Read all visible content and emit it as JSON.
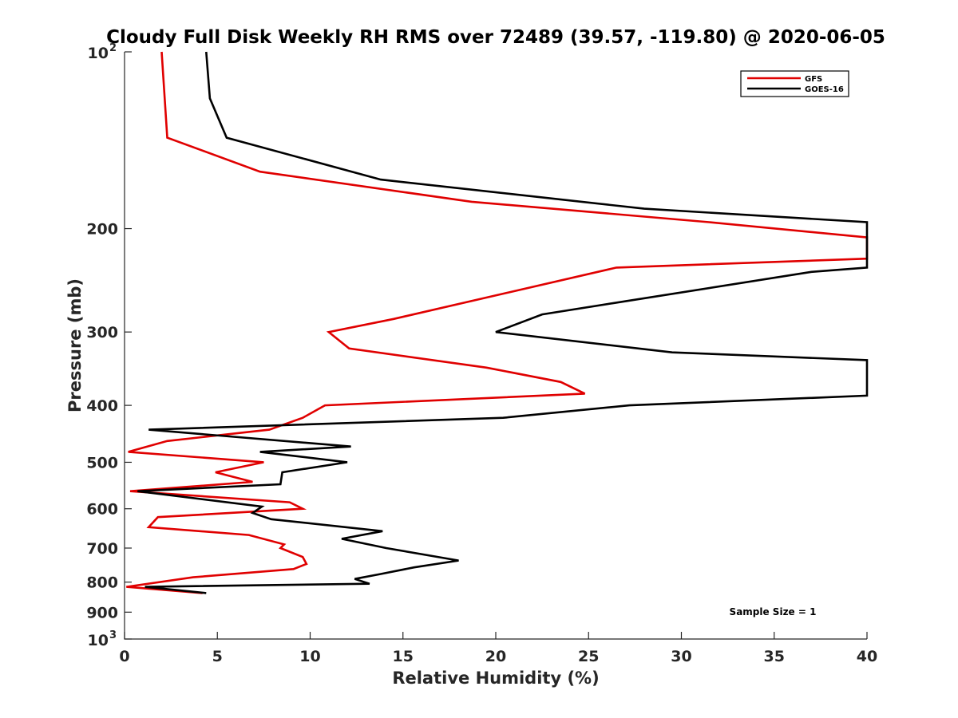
{
  "chart_data": {
    "type": "line",
    "title": "Cloudy Full Disk Weekly RH RMS over 72489 (39.57, -119.80) @ 2020-06-05",
    "xlabel": "Relative Humidity (%)",
    "ylabel": "Pressure (mb)",
    "xlim": [
      0,
      40
    ],
    "ylim": [
      100,
      1000
    ],
    "yscale": "log",
    "y_reversed": true,
    "grid": false,
    "legend_position": "top-right",
    "x_ticks": [
      "0",
      "5",
      "10",
      "15",
      "20",
      "25",
      "30",
      "35",
      "40"
    ],
    "y_ticks": [
      {
        "value": 100,
        "base": "10",
        "exp": "2"
      },
      {
        "value": 200,
        "label": "200"
      },
      {
        "value": 300,
        "label": "300"
      },
      {
        "value": 400,
        "label": "400"
      },
      {
        "value": 500,
        "label": "500"
      },
      {
        "value": 600,
        "label": "600"
      },
      {
        "value": 700,
        "label": "700"
      },
      {
        "value": 800,
        "label": "800"
      },
      {
        "value": 900,
        "label": "900"
      },
      {
        "value": 1000,
        "base": "10",
        "exp": "3"
      }
    ],
    "annotation": "Sample Size = 1",
    "series": [
      {
        "name": "GFS",
        "color": "#e00000",
        "points": [
          [
            2.0,
            100
          ],
          [
            2.3,
            140
          ],
          [
            7.3,
            160
          ],
          [
            18.7,
            180
          ],
          [
            31.5,
            195
          ],
          [
            40,
            207
          ],
          [
            40,
            225
          ],
          [
            26.5,
            233
          ],
          [
            14.5,
            285
          ],
          [
            11.0,
            300
          ],
          [
            12.1,
            320
          ],
          [
            19.5,
            345
          ],
          [
            23.5,
            365
          ],
          [
            24.8,
            382
          ],
          [
            10.8,
            400
          ],
          [
            9.6,
            420
          ],
          [
            7.8,
            440
          ],
          [
            2.3,
            460
          ],
          [
            0.2,
            480
          ],
          [
            7.5,
            500
          ],
          [
            4.9,
            520
          ],
          [
            6.9,
            540
          ],
          [
            0.3,
            560
          ],
          [
            8.9,
            585
          ],
          [
            9.6,
            600
          ],
          [
            1.8,
            620
          ],
          [
            1.3,
            645
          ],
          [
            6.7,
            665
          ],
          [
            8.6,
            690
          ],
          [
            8.4,
            700
          ],
          [
            9.6,
            725
          ],
          [
            9.8,
            745
          ],
          [
            9.1,
            760
          ],
          [
            3.7,
            785
          ],
          [
            0.1,
            815
          ],
          [
            4.2,
            835
          ]
        ]
      },
      {
        "name": "GOES-16",
        "color": "#000000",
        "points": [
          [
            4.4,
            100
          ],
          [
            4.6,
            120
          ],
          [
            5.5,
            140
          ],
          [
            13.8,
            165
          ],
          [
            28.0,
            185
          ],
          [
            40,
            195
          ],
          [
            40,
            233
          ],
          [
            37.0,
            237
          ],
          [
            22.5,
            280
          ],
          [
            20.0,
            300
          ],
          [
            29.5,
            325
          ],
          [
            40,
            335
          ],
          [
            40,
            385
          ],
          [
            27.2,
            400
          ],
          [
            20.4,
            420
          ],
          [
            1.3,
            440
          ],
          [
            12.2,
            470
          ],
          [
            7.3,
            480
          ],
          [
            12.0,
            500
          ],
          [
            8.5,
            520
          ],
          [
            8.4,
            545
          ],
          [
            0.7,
            560
          ],
          [
            7.4,
            595
          ],
          [
            6.9,
            610
          ],
          [
            7.9,
            625
          ],
          [
            13.9,
            655
          ],
          [
            11.7,
            675
          ],
          [
            14.1,
            700
          ],
          [
            18.0,
            735
          ],
          [
            15.6,
            755
          ],
          [
            13.8,
            775
          ],
          [
            12.4,
            790
          ],
          [
            13.2,
            805
          ],
          [
            1.1,
            815
          ],
          [
            4.4,
            835
          ]
        ]
      }
    ]
  }
}
